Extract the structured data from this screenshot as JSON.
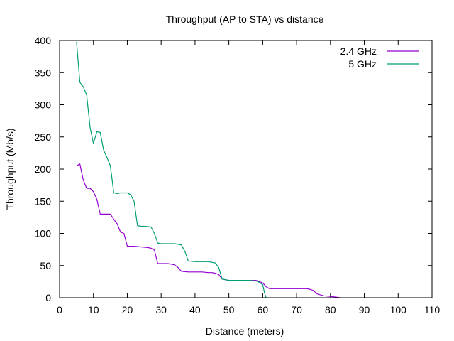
{
  "chart_data": {
    "type": "line",
    "title": "Throughput (AP to STA) vs distance",
    "xlabel": "Distance (meters)",
    "ylabel": "Throughput (Mb/s)",
    "xlim": [
      0,
      110
    ],
    "ylim": [
      0,
      400
    ],
    "xticks": [
      0,
      10,
      20,
      30,
      40,
      50,
      60,
      70,
      80,
      90,
      100,
      110
    ],
    "yticks": [
      0,
      50,
      100,
      150,
      200,
      250,
      300,
      350,
      400
    ],
    "grid": false,
    "legend_position": "top-right",
    "series": [
      {
        "name": "2.4 GHz",
        "color": "#9400d3",
        "x": [
          5,
          6,
          7,
          8,
          9,
          10,
          11,
          12,
          13,
          14,
          15,
          16,
          17,
          18,
          19,
          20,
          22,
          24,
          26,
          27,
          28,
          29,
          30,
          32,
          34,
          35,
          36,
          38,
          40,
          42,
          44,
          45,
          46,
          47,
          48,
          50,
          52,
          54,
          56,
          58,
          60,
          61,
          62,
          65,
          70,
          73,
          74,
          75,
          76,
          78,
          80,
          83
        ],
        "y": [
          205,
          208,
          183,
          170,
          170,
          165,
          153,
          130,
          130,
          130,
          130,
          122,
          115,
          102,
          100,
          80,
          80,
          79,
          78,
          77,
          74,
          53,
          53,
          53,
          51,
          47,
          41,
          40,
          40,
          40,
          39,
          39,
          38,
          36,
          29,
          27,
          27,
          27,
          27,
          27,
          23,
          17,
          14,
          14,
          14,
          14,
          13,
          11,
          6,
          3,
          2,
          0
        ]
      },
      {
        "name": "5 GHz",
        "color": "#009e73",
        "x": [
          5,
          6,
          7,
          8,
          9,
          10,
          11,
          12,
          13,
          14,
          15,
          16,
          17,
          18,
          19,
          20,
          21,
          22,
          23,
          24,
          25,
          27,
          28,
          29,
          30,
          32,
          34,
          36,
          37,
          38,
          40,
          42,
          44,
          46,
          47,
          48,
          50,
          52,
          54,
          56,
          58,
          59,
          60,
          60.5,
          61
        ],
        "y": [
          398,
          335,
          328,
          315,
          265,
          240,
          258,
          257,
          230,
          218,
          205,
          163,
          162,
          163,
          163,
          163,
          160,
          150,
          112,
          111,
          111,
          110,
          100,
          85,
          84,
          84,
          84,
          82,
          72,
          57,
          56,
          56,
          56,
          54,
          47,
          29,
          27,
          27,
          27,
          27,
          26,
          24,
          20,
          8,
          0
        ]
      }
    ]
  }
}
